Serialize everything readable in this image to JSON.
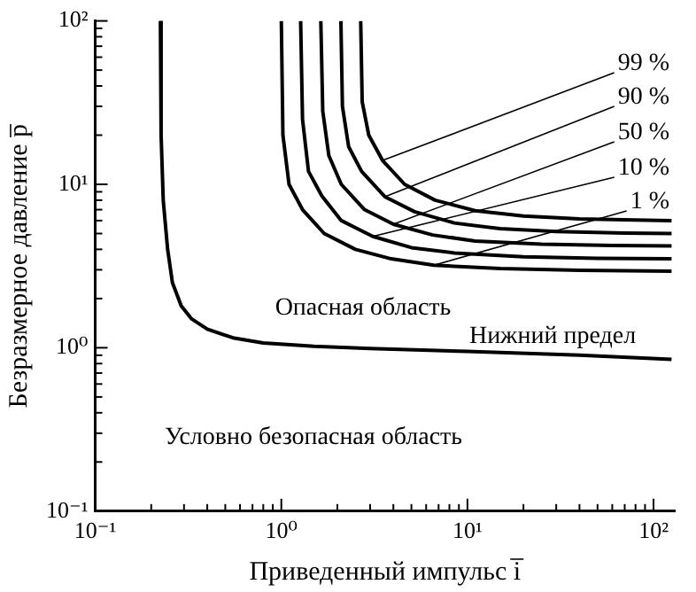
{
  "chart_data": {
    "type": "line",
    "xlabel": "Приведенный импульс i̅",
    "ylabel": "Безразмерное давление p̅",
    "log": "xy",
    "grid": false,
    "legend": false,
    "marker": "none",
    "line_style": "solid",
    "xlim": [
      0.1,
      130
    ],
    "ylim": [
      0.1,
      100
    ],
    "xticks": [
      {
        "value": 0.1,
        "label": "10⁻¹"
      },
      {
        "value": 0.2,
        "label": null
      },
      {
        "value": 0.3,
        "label": null
      },
      {
        "value": 0.4,
        "label": null
      },
      {
        "value": 0.5,
        "label": null
      },
      {
        "value": 0.6,
        "label": null
      },
      {
        "value": 0.7,
        "label": null
      },
      {
        "value": 0.8,
        "label": null
      },
      {
        "value": 0.9,
        "label": null
      },
      {
        "value": 1,
        "label": "10⁰"
      },
      {
        "value": 2,
        "label": null
      },
      {
        "value": 3,
        "label": null
      },
      {
        "value": 4,
        "label": null
      },
      {
        "value": 5,
        "label": null
      },
      {
        "value": 6,
        "label": null
      },
      {
        "value": 7,
        "label": null
      },
      {
        "value": 8,
        "label": null
      },
      {
        "value": 9,
        "label": null
      },
      {
        "value": 10,
        "label": "10¹"
      },
      {
        "value": 20,
        "label": null
      },
      {
        "value": 30,
        "label": null
      },
      {
        "value": 40,
        "label": null
      },
      {
        "value": 50,
        "label": null
      },
      {
        "value": 60,
        "label": null
      },
      {
        "value": 70,
        "label": null
      },
      {
        "value": 80,
        "label": null
      },
      {
        "value": 90,
        "label": null
      },
      {
        "value": 100,
        "label": "10²"
      }
    ],
    "yticks": [
      {
        "value": 0.1,
        "label": "10⁻¹"
      },
      {
        "value": 0.2,
        "label": null
      },
      {
        "value": 0.3,
        "label": null
      },
      {
        "value": 0.4,
        "label": null
      },
      {
        "value": 0.5,
        "label": null
      },
      {
        "value": 0.6,
        "label": null
      },
      {
        "value": 0.7,
        "label": null
      },
      {
        "value": 0.8,
        "label": null
      },
      {
        "value": 0.9,
        "label": null
      },
      {
        "value": 1,
        "label": "10⁰"
      },
      {
        "value": 2,
        "label": null
      },
      {
        "value": 3,
        "label": null
      },
      {
        "value": 4,
        "label": null
      },
      {
        "value": 5,
        "label": null
      },
      {
        "value": 6,
        "label": null
      },
      {
        "value": 7,
        "label": null
      },
      {
        "value": 8,
        "label": null
      },
      {
        "value": 9,
        "label": null
      },
      {
        "value": 10,
        "label": "10¹"
      },
      {
        "value": 20,
        "label": null
      },
      {
        "value": 30,
        "label": null
      },
      {
        "value": 40,
        "label": null
      },
      {
        "value": 50,
        "label": null
      },
      {
        "value": 60,
        "label": null
      },
      {
        "value": 70,
        "label": null
      },
      {
        "value": 80,
        "label": null
      },
      {
        "value": 90,
        "label": null
      },
      {
        "value": 100,
        "label": "10²"
      }
    ],
    "series": [
      {
        "color": "#000000",
        "x": [
          1.0,
          1.02,
          1.1,
          1.3,
          1.7,
          2.5,
          3.9,
          6.6,
          15,
          40,
          125
        ],
        "values": [
          100,
          20,
          10,
          7,
          5,
          4,
          3.5,
          3.2,
          3.05,
          2.98,
          2.94
        ]
      },
      {
        "color": "#000000",
        "x": [
          1.27,
          1.3,
          1.4,
          1.65,
          2.1,
          3.1,
          5,
          8.5,
          20,
          50,
          125
        ],
        "values": [
          100,
          25,
          12,
          8.5,
          6,
          4.8,
          4.1,
          3.8,
          3.6,
          3.53,
          3.5
        ]
      },
      {
        "color": "#000000",
        "x": [
          1.63,
          1.67,
          1.8,
          2.1,
          2.8,
          4,
          6.5,
          11,
          25,
          60,
          125
        ],
        "values": [
          100,
          28,
          15,
          10,
          7,
          5.7,
          4.9,
          4.5,
          4.3,
          4.22,
          4.2
        ]
      },
      {
        "color": "#000000",
        "x": [
          2.09,
          2.13,
          2.3,
          2.7,
          3.6,
          5.2,
          8.5,
          15,
          30,
          70,
          125
        ],
        "values": [
          100,
          30,
          17,
          12,
          8.4,
          6.8,
          5.8,
          5.35,
          5.15,
          5.03,
          5.0
        ]
      },
      {
        "color": "#000000",
        "x": [
          2.67,
          2.72,
          2.95,
          3.5,
          4.6,
          6.7,
          11,
          20,
          40,
          80,
          125
        ],
        "values": [
          100,
          32,
          20,
          14,
          10,
          8,
          6.9,
          6.4,
          6.15,
          6.05,
          6.0
        ]
      },
      {
        "name": "Нижний предел",
        "color": "#000000",
        "x": [
          0.224,
          0.226,
          0.232,
          0.245,
          0.26,
          0.29,
          0.33,
          0.4,
          0.55,
          0.8,
          1.5,
          3,
          10,
          40,
          125
        ],
        "values": [
          100,
          20,
          8,
          4,
          2.5,
          1.8,
          1.5,
          1.3,
          1.15,
          1.07,
          1.02,
          0.99,
          0.95,
          0.9,
          0.85
        ]
      }
    ],
    "annotations": [
      {
        "text": "99 %",
        "x": 3.5,
        "y": 14
      },
      {
        "text": "90 %",
        "x": 3.6,
        "y": 8.4
      },
      {
        "text": "50 %",
        "x": 4,
        "y": 5.7
      },
      {
        "text": "10 %",
        "x": 3.1,
        "y": 4.8
      },
      {
        "text": "1 %",
        "x": 6.6,
        "y": 3.2
      },
      "Опасная область",
      "Условно безопасная область"
    ]
  }
}
